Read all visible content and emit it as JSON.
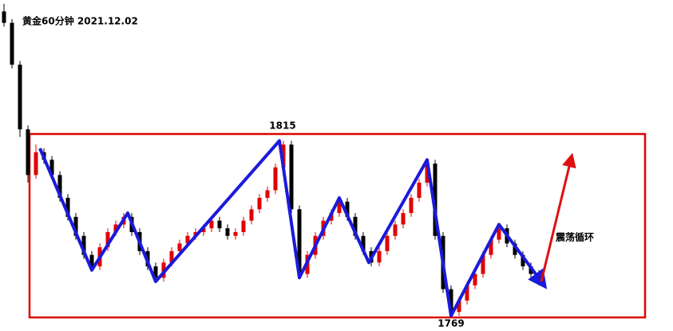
{
  "chart_data": {
    "type": "candlestick",
    "title": "黄金60分钟 2021.12.02",
    "ylim": [
      1765,
      1852
    ],
    "up_color": "#e00000",
    "down_color": "#000000",
    "candles": [
      [
        1849,
        1851,
        1845,
        1846
      ],
      [
        1846,
        1847,
        1834,
        1835
      ],
      [
        1835,
        1836,
        1816,
        1818
      ],
      [
        1818,
        1819,
        1804,
        1806
      ],
      [
        1806,
        1814,
        1805,
        1812
      ],
      [
        1812,
        1813,
        1809,
        1810
      ],
      [
        1810,
        1811,
        1805,
        1806
      ],
      [
        1806,
        1807,
        1799,
        1800
      ],
      [
        1800,
        1801,
        1794,
        1795
      ],
      [
        1795,
        1796,
        1789,
        1790
      ],
      [
        1790,
        1791,
        1784,
        1785
      ],
      [
        1785,
        1786,
        1781,
        1782
      ],
      [
        1782,
        1788,
        1781,
        1787
      ],
      [
        1787,
        1792,
        1786,
        1791
      ],
      [
        1791,
        1794,
        1790,
        1793
      ],
      [
        1793,
        1796,
        1792,
        1795
      ],
      [
        1795,
        1796,
        1790,
        1791
      ],
      [
        1791,
        1792,
        1785,
        1786
      ],
      [
        1786,
        1787,
        1781,
        1782
      ],
      [
        1782,
        1783,
        1778,
        1779
      ],
      [
        1779,
        1784,
        1778,
        1783
      ],
      [
        1783,
        1787,
        1782,
        1786
      ],
      [
        1786,
        1789,
        1785,
        1788
      ],
      [
        1788,
        1791,
        1787,
        1790
      ],
      [
        1790,
        1792,
        1789,
        1791
      ],
      [
        1791,
        1793,
        1790,
        1792
      ],
      [
        1792,
        1795,
        1791,
        1794
      ],
      [
        1794,
        1795,
        1791,
        1792
      ],
      [
        1792,
        1793,
        1789,
        1790
      ],
      [
        1790,
        1792,
        1789,
        1791
      ],
      [
        1791,
        1795,
        1790,
        1794
      ],
      [
        1794,
        1798,
        1793,
        1797
      ],
      [
        1797,
        1801,
        1796,
        1800
      ],
      [
        1800,
        1803,
        1799,
        1802
      ],
      [
        1802,
        1809,
        1801,
        1808
      ],
      [
        1808,
        1815,
        1807,
        1814
      ],
      [
        1814,
        1815,
        1796,
        1797
      ],
      [
        1797,
        1798,
        1779,
        1780
      ],
      [
        1780,
        1786,
        1779,
        1785
      ],
      [
        1785,
        1791,
        1784,
        1790
      ],
      [
        1790,
        1795,
        1789,
        1794
      ],
      [
        1794,
        1797,
        1793,
        1796
      ],
      [
        1796,
        1800,
        1795,
        1799
      ],
      [
        1799,
        1800,
        1794,
        1795
      ],
      [
        1795,
        1796,
        1789,
        1790
      ],
      [
        1790,
        1791,
        1785,
        1786
      ],
      [
        1786,
        1787,
        1782,
        1783
      ],
      [
        1783,
        1787,
        1782,
        1786
      ],
      [
        1786,
        1791,
        1785,
        1790
      ],
      [
        1790,
        1794,
        1789,
        1793
      ],
      [
        1793,
        1797,
        1792,
        1796
      ],
      [
        1796,
        1801,
        1795,
        1800
      ],
      [
        1800,
        1805,
        1799,
        1804
      ],
      [
        1804,
        1810,
        1803,
        1809
      ],
      [
        1809,
        1810,
        1789,
        1790
      ],
      [
        1790,
        1791,
        1775,
        1776
      ],
      [
        1776,
        1777,
        1769,
        1770
      ],
      [
        1770,
        1774,
        1769,
        1773
      ],
      [
        1773,
        1778,
        1772,
        1777
      ],
      [
        1777,
        1781,
        1776,
        1780
      ],
      [
        1780,
        1786,
        1779,
        1785
      ],
      [
        1785,
        1790,
        1784,
        1789
      ],
      [
        1789,
        1793,
        1788,
        1792
      ],
      [
        1792,
        1793,
        1787,
        1788
      ],
      [
        1788,
        1789,
        1784,
        1785
      ],
      [
        1785,
        1786,
        1781,
        1782
      ],
      [
        1782,
        1783,
        1779,
        1780
      ],
      [
        1780,
        1781,
        1777,
        1778
      ]
    ],
    "wave": {
      "color": "#1a1adc",
      "x": [
        4.5,
        11,
        15.5,
        19,
        34.5,
        37,
        42,
        45.7,
        53,
        56,
        62,
        67.3
      ],
      "values": [
        1813,
        1781,
        1796,
        1778,
        1815,
        1779,
        1800,
        1783,
        1810,
        1769,
        1793,
        1778
      ]
    },
    "projection": {
      "color": "#e01010",
      "x": [
        67.3,
        71
      ],
      "values": [
        1778,
        1810
      ]
    },
    "high_label": "1815",
    "low_label": "1769",
    "note": "震荡循环"
  }
}
